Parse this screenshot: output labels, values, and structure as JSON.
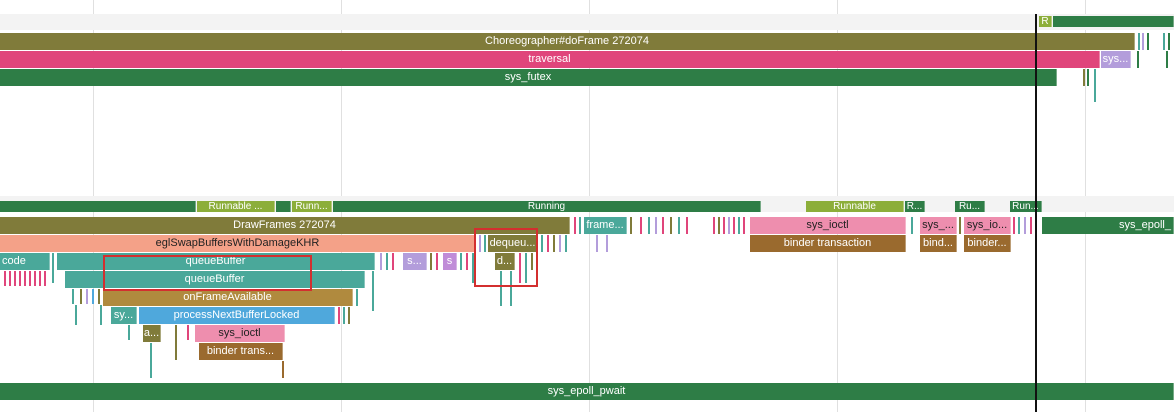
{
  "colors": {
    "olive": "#807b3a",
    "pink": "#e0457b",
    "green": "#2e7d46",
    "lime": "#8cae3a",
    "teal": "#4aa89a",
    "salmon": "#f4a188",
    "brown": "#9a6a2e",
    "lightblue": "#4fa8dc",
    "lightpink": "#ee8eae",
    "lavender": "#b39ddb",
    "selection": "#d32f2f"
  },
  "main_thread": {
    "running_marker": "R",
    "choreographer": "Choreographer#doFrame 272074",
    "traversal": "traversal",
    "sys_futex": "sys_futex",
    "sys_short": "sys..."
  },
  "render_thread": {
    "states": {
      "runnable_1": "Runnable ...",
      "runnable_2": "Runn...",
      "running": "Running",
      "runnable_3": "Runnable",
      "r1": "R...",
      "r2": "Ru...",
      "r3": "Run..."
    },
    "draw_frames": "DrawFrames 272074",
    "frame_short": "frame...",
    "sys_ioctl": "sys_ioctl",
    "sys_short": "sys_...",
    "sys_io": "sys_io...",
    "sys_epoll_short": "sys_epoll_",
    "egl_swap": "eglSwapBuffersWithDamageKHR",
    "dequeue_short": "dequeu...",
    "binder_transaction": "binder transaction",
    "bind_short": "bind...",
    "binder_short": "binder...",
    "code": "code",
    "queue_buffer_1": "queueBuffer",
    "s_dots": "s...",
    "s": "s",
    "d_dots": "d...",
    "queue_buffer_2": "queueBuffer",
    "on_frame_available": "onFrameAvailable",
    "sy": "sy...",
    "process_next_buffer": "processNextBufferLocked",
    "a": "a...",
    "sys_ioctl_2": "sys_ioctl",
    "binder_trans_short": "binder trans...",
    "sys_epoll_pwait": "sys_epoll_pwait"
  }
}
